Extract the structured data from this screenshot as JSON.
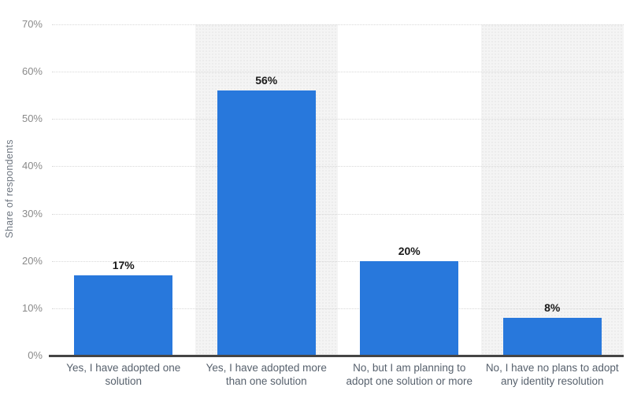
{
  "chart_data": {
    "type": "bar",
    "title": "",
    "xlabel": "",
    "ylabel": "Share of respondents",
    "ylim": [
      0,
      70
    ],
    "ytick_values": [
      0,
      10,
      20,
      30,
      40,
      50,
      60,
      70
    ],
    "ytick_labels": [
      "0%",
      "10%",
      "20%",
      "30%",
      "40%",
      "50%",
      "60%",
      "70%"
    ],
    "categories": [
      "Yes, I have adopted one solution",
      "Yes, I have adopted more than one solution",
      "No, but I am planning to adopt one solution or more",
      "No, I have no plans to adopt any identity resolution"
    ],
    "values": [
      17,
      56,
      20,
      8
    ],
    "value_labels": [
      "17%",
      "56%",
      "20%",
      "8%"
    ],
    "legend": null,
    "grid": "horizontal-dotted",
    "plot_bands": "alternating-columns",
    "colors": {
      "bar": "#2878DC",
      "band": "#f4f4f4",
      "band_dot": "#eaeaea",
      "gridline": "#d8d8d8",
      "axis_line": "#454545",
      "tick_label": "#8a8a8a",
      "category_label": "#57616d",
      "value_label": "#1a1a1a",
      "axis_title": "#6e7680",
      "background": "#ffffff"
    }
  }
}
